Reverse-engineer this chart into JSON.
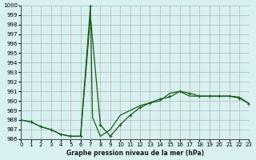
{
  "title": "Graphe pression niveau de la mer (hPa)",
  "xlabel": "Graphe pression niveau de la mer (hPa)",
  "xlim": [
    0,
    23
  ],
  "ylim": [
    986,
    1000
  ],
  "yticks": [
    986,
    987,
    988,
    989,
    990,
    991,
    992,
    993,
    994,
    995,
    996,
    997,
    998,
    999,
    1000
  ],
  "xticks": [
    0,
    1,
    2,
    3,
    4,
    5,
    6,
    7,
    8,
    9,
    10,
    11,
    12,
    13,
    14,
    15,
    16,
    17,
    18,
    19,
    20,
    21,
    22,
    23
  ],
  "background_color": "#d8f0f0",
  "grid_color": "#aaaaaa",
  "line_color": "#1a5c1a",
  "line1_x": [
    0,
    1,
    2,
    3,
    4,
    5,
    6,
    7,
    7.2,
    8,
    9,
    10,
    11,
    12,
    13,
    14,
    15,
    16,
    17,
    18,
    19,
    20,
    21,
    22,
    23
  ],
  "line1_y": [
    988.0,
    987.8,
    987.3,
    987.0,
    986.5,
    986.3,
    986.3,
    1000.0,
    988.3,
    986.3,
    987.0,
    988.5,
    989.0,
    989.5,
    989.8,
    990.0,
    990.8,
    991.0,
    990.5,
    990.5,
    990.5,
    990.5,
    990.5,
    990.4,
    989.7
  ],
  "line2_x": [
    0,
    1,
    2,
    3,
    4,
    5,
    6,
    7,
    8,
    9,
    10,
    11,
    12,
    13,
    14,
    15,
    16,
    17,
    18,
    19,
    20,
    21,
    22,
    23
  ],
  "line2_y": [
    988.0,
    987.8,
    987.3,
    987.0,
    986.5,
    986.3,
    986.3,
    998.8,
    987.5,
    986.3,
    987.5,
    988.5,
    989.3,
    989.8,
    990.2,
    990.4,
    991.0,
    990.8,
    990.5,
    990.5,
    990.5,
    990.5,
    990.3,
    989.7
  ],
  "marker_x": [
    0,
    1,
    2,
    3,
    4,
    5,
    6,
    7,
    8,
    9,
    10,
    11,
    12,
    13,
    14,
    15,
    16,
    17,
    18,
    19,
    20,
    21,
    22,
    23
  ],
  "marker_y": [
    988.0,
    987.8,
    987.3,
    987.0,
    986.5,
    986.3,
    986.3,
    1000.0,
    987.5,
    986.3,
    987.5,
    988.5,
    989.3,
    989.8,
    990.2,
    990.5,
    991.0,
    990.8,
    990.5,
    990.5,
    990.5,
    990.5,
    990.3,
    989.7
  ]
}
